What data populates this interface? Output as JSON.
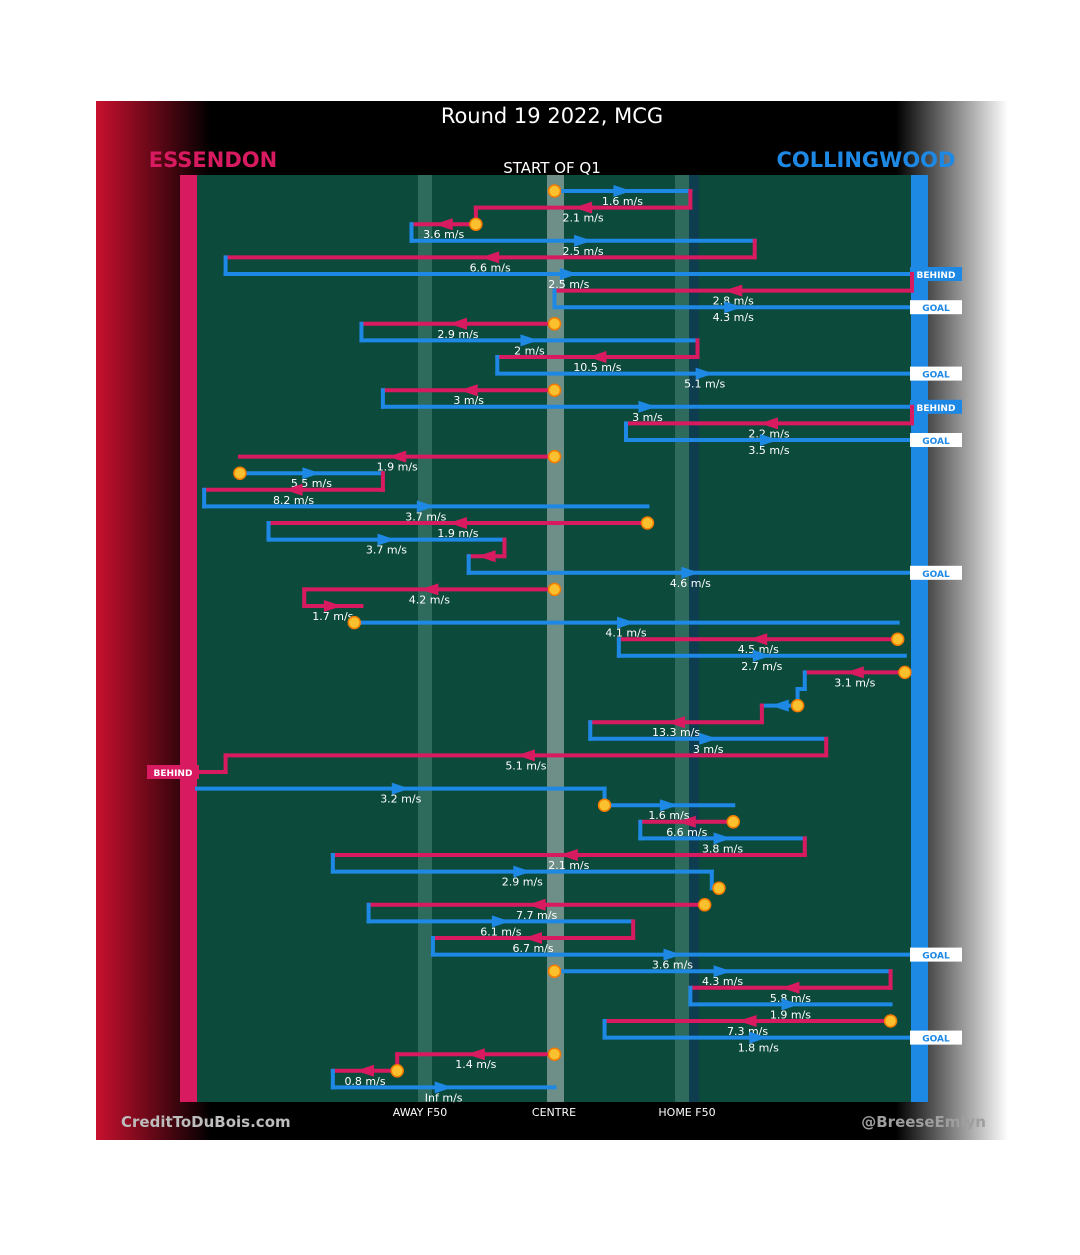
{
  "chart_data": {
    "type": "line",
    "title": "Round 19 2022, MCG",
    "subtitle": "START OF Q1",
    "team_left": "ESSENDON",
    "team_right": "COLLINGWOOD",
    "x_axis": {
      "ticks": [
        {
          "label": "AWAY F50",
          "x": 0.3
        },
        {
          "label": "CENTRE",
          "x": 0.5
        },
        {
          "label": "HOME F50",
          "x": 0.7
        }
      ],
      "xlim": [
        0,
        1
      ]
    },
    "credit_left": "CreditToDuBois.com",
    "credit_right": "@BreeseEmlyn",
    "colors": {
      "essendon": "#d81b60",
      "collingwood": "#1e88e5",
      "ground": "#0c4a3c",
      "marker": "#fbc02d"
    },
    "segments": [
      {
        "team": "C",
        "x0": 0.5,
        "x1": 0.69,
        "y": 1,
        "speed": "1.6 m/s",
        "joinFrom": 0
      },
      {
        "team": "E",
        "x0": 0.69,
        "x1": 0.39,
        "y": 2,
        "speed": "2.1 m/s",
        "joinFrom": 1
      },
      {
        "team": "E",
        "x0": 0.39,
        "x1": 0.3,
        "y": 3,
        "speed": "3.6 m/s",
        "joinFrom": 2
      },
      {
        "team": "C",
        "x0": 0.3,
        "x1": 0.78,
        "y": 4,
        "speed": "2.5 m/s",
        "joinFrom": 3
      },
      {
        "team": "E",
        "x0": 0.78,
        "x1": 0.04,
        "y": 5,
        "speed": "6.6 m/s",
        "joinFrom": 4
      },
      {
        "team": "C",
        "x0": 0.04,
        "x1": 1.0,
        "y": 6,
        "speed": "2.5 m/s",
        "joinFrom": 5,
        "end": "BEHIND"
      },
      {
        "team": "E",
        "x0": 1.0,
        "x1": 0.5,
        "y": 7,
        "speed": "2.8 m/s",
        "joinFrom": 6
      },
      {
        "team": "C",
        "x0": 0.5,
        "x1": 1.0,
        "y": 8,
        "speed": "4.3 m/s",
        "joinFrom": 7,
        "end": "GOAL"
      },
      {
        "team": "E",
        "x0": 0.5,
        "x1": 0.23,
        "y": 9,
        "speed": "2.9 m/s",
        "joinFrom": null
      },
      {
        "team": "C",
        "x0": 0.23,
        "x1": 0.7,
        "y": 10,
        "speed": "2 m/s",
        "joinFrom": 9
      },
      {
        "team": "E",
        "x0": 0.7,
        "x1": 0.42,
        "y": 11,
        "speed": "10.5 m/s",
        "joinFrom": 10
      },
      {
        "team": "C",
        "x0": 0.42,
        "x1": 1.0,
        "y": 12,
        "speed": "5.1 m/s",
        "joinFrom": 11,
        "end": "GOAL"
      },
      {
        "team": "E",
        "x0": 0.5,
        "x1": 0.26,
        "y": 13,
        "speed": "3 m/s",
        "joinFrom": null
      },
      {
        "team": "C",
        "x0": 0.26,
        "x1": 1.0,
        "y": 14,
        "speed": "3 m/s",
        "joinFrom": 13,
        "end": "BEHIND"
      },
      {
        "team": "E",
        "x0": 1.0,
        "x1": 0.6,
        "y": 15,
        "speed": "2.2 m/s",
        "joinFrom": 14
      },
      {
        "team": "C",
        "x0": 0.6,
        "x1": 1.0,
        "y": 16,
        "speed": "3.5 m/s",
        "joinFrom": 15,
        "end": "GOAL"
      },
      {
        "team": "E",
        "x0": 0.5,
        "x1": 0.06,
        "y": 17,
        "speed": "1.9 m/s",
        "joinFrom": null
      },
      {
        "team": "C",
        "x0": 0.06,
        "x1": 0.26,
        "y": 18,
        "speed": "5.5 m/s",
        "joinFrom": null
      },
      {
        "team": "E",
        "x0": 0.26,
        "x1": 0.01,
        "y": 19,
        "speed": "8.2 m/s",
        "joinFrom": 18
      },
      {
        "team": "C",
        "x0": 0.01,
        "x1": 0.63,
        "y": 20,
        "speed": "3.7 m/s",
        "joinFrom": 19
      },
      {
        "team": "E",
        "x0": 0.63,
        "x1": 0.1,
        "y": 21,
        "speed": "1.9 m/s",
        "joinFrom": null
      },
      {
        "team": "C",
        "x0": 0.1,
        "x1": 0.43,
        "y": 22,
        "speed": "3.7 m/s",
        "joinFrom": 21
      },
      {
        "team": "E",
        "x0": 0.43,
        "x1": 0.38,
        "y": 23,
        "speed": "",
        "joinFrom": 22
      },
      {
        "team": "C",
        "x0": 0.38,
        "x1": 1.0,
        "y": 24,
        "speed": "4.6 m/s",
        "joinFrom": 23,
        "end": "GOAL"
      },
      {
        "team": "E",
        "x0": 0.5,
        "x1": 0.15,
        "y": 25,
        "speed": "4.2 m/s",
        "joinFrom": null
      },
      {
        "team": "E",
        "x0": 0.15,
        "x1": 0.23,
        "y": 26,
        "speed": "1.7 m/s",
        "joinFrom": 25
      },
      {
        "team": "C",
        "x0": 0.22,
        "x1": 0.98,
        "y": 27,
        "speed": "4.1 m/s",
        "joinFrom": null
      },
      {
        "team": "E",
        "x0": 0.98,
        "x1": 0.59,
        "y": 28,
        "speed": "4.5 m/s",
        "joinFrom": null
      },
      {
        "team": "C",
        "x0": 0.59,
        "x1": 0.99,
        "y": 29,
        "speed": "2.7 m/s",
        "joinFrom": 28
      },
      {
        "team": "E",
        "x0": 0.99,
        "x1": 0.85,
        "y": 30,
        "speed": "3.1 m/s",
        "joinFrom": null
      },
      {
        "team": "C",
        "x0": 0.85,
        "x1": 0.84,
        "y": 31,
        "speed": "",
        "joinFrom": 30
      },
      {
        "team": "C",
        "x0": 0.84,
        "x1": 0.79,
        "y": 32,
        "speed": "",
        "joinFrom": 31
      },
      {
        "team": "E",
        "x0": 0.79,
        "x1": 0.55,
        "y": 33,
        "speed": "13.3 m/s",
        "joinFrom": 32
      },
      {
        "team": "C",
        "x0": 0.55,
        "x1": 0.88,
        "y": 34,
        "speed": "3 m/s",
        "joinFrom": 33
      },
      {
        "team": "E",
        "x0": 0.88,
        "x1": 0.04,
        "y": 35,
        "speed": "5.1 m/s",
        "joinFrom": 34
      },
      {
        "team": "E",
        "x0": 0.04,
        "x1": 0.0,
        "y": 36,
        "speed": "",
        "joinFrom": 35,
        "end": "BEHIND"
      },
      {
        "team": "C",
        "x0": 0.0,
        "x1": 0.57,
        "y": 37,
        "speed": "3.2 m/s",
        "joinFrom": null
      },
      {
        "team": "C",
        "x0": 0.57,
        "x1": 0.75,
        "y": 38,
        "speed": "1.6 m/s",
        "joinFrom": 37
      },
      {
        "team": "E",
        "x0": 0.75,
        "x1": 0.62,
        "y": 39,
        "speed": "6.6 m/s",
        "joinFrom": null
      },
      {
        "team": "C",
        "x0": 0.62,
        "x1": 0.85,
        "y": 40,
        "speed": "3.8 m/s",
        "joinFrom": 39
      },
      {
        "team": "E",
        "x0": 0.85,
        "x1": 0.19,
        "y": 41,
        "speed": "2.1 m/s",
        "joinFrom": 40
      },
      {
        "team": "C",
        "x0": 0.19,
        "x1": 0.72,
        "y": 42,
        "speed": "2.9 m/s",
        "joinFrom": 41
      },
      {
        "team": "C",
        "x0": 0.72,
        "x1": 0.73,
        "y": 43,
        "speed": "",
        "joinFrom": 42
      },
      {
        "team": "E",
        "x0": 0.71,
        "x1": 0.24,
        "y": 44,
        "speed": "7.7 m/s",
        "joinFrom": null
      },
      {
        "team": "C",
        "x0": 0.24,
        "x1": 0.61,
        "y": 45,
        "speed": "6.1 m/s",
        "joinFrom": 44
      },
      {
        "team": "E",
        "x0": 0.61,
        "x1": 0.33,
        "y": 46,
        "speed": "6.7 m/s",
        "joinFrom": 45
      },
      {
        "team": "C",
        "x0": 0.33,
        "x1": 1.0,
        "y": 47,
        "speed": "3.6 m/s",
        "joinFrom": 46,
        "end": "GOAL"
      },
      {
        "team": "C",
        "x0": 0.5,
        "x1": 0.97,
        "y": 48,
        "speed": "4.3 m/s",
        "joinFrom": null
      },
      {
        "team": "E",
        "x0": 0.97,
        "x1": 0.69,
        "y": 49,
        "speed": "5.8 m/s",
        "joinFrom": 48
      },
      {
        "team": "C",
        "x0": 0.69,
        "x1": 0.97,
        "y": 50,
        "speed": "1.9 m/s",
        "joinFrom": 49
      },
      {
        "team": "E",
        "x0": 0.97,
        "x1": 0.57,
        "y": 51,
        "speed": "7.3 m/s",
        "joinFrom": null
      },
      {
        "team": "C",
        "x0": 0.57,
        "x1": 1.0,
        "y": 52,
        "speed": "1.8 m/s",
        "joinFrom": 51,
        "end": "GOAL"
      },
      {
        "team": "E",
        "x0": 0.5,
        "x1": 0.28,
        "y": 53,
        "speed": "1.4 m/s",
        "joinFrom": null
      },
      {
        "team": "E",
        "x0": 0.28,
        "x1": 0.19,
        "y": 54,
        "speed": "0.8 m/s",
        "joinFrom": 53
      },
      {
        "team": "C",
        "x0": 0.19,
        "x1": 0.5,
        "y": 55,
        "speed": "Inf m/s",
        "joinFrom": 54
      }
    ],
    "markers": [
      {
        "x": 0.5,
        "y": 1
      },
      {
        "x": 0.39,
        "y": 3
      },
      {
        "x": 0.5,
        "y": 9
      },
      {
        "x": 0.5,
        "y": 13
      },
      {
        "x": 0.5,
        "y": 17
      },
      {
        "x": 0.06,
        "y": 18
      },
      {
        "x": 0.63,
        "y": 21
      },
      {
        "x": 0.5,
        "y": 25
      },
      {
        "x": 0.22,
        "y": 27
      },
      {
        "x": 0.98,
        "y": 28
      },
      {
        "x": 0.99,
        "y": 30
      },
      {
        "x": 0.84,
        "y": 32
      },
      {
        "x": 0.57,
        "y": 38
      },
      {
        "x": 0.75,
        "y": 39
      },
      {
        "x": 0.73,
        "y": 43
      },
      {
        "x": 0.71,
        "y": 44
      },
      {
        "x": 0.5,
        "y": 48
      },
      {
        "x": 0.97,
        "y": 51
      },
      {
        "x": 0.5,
        "y": 53
      },
      {
        "x": 0.28,
        "y": 54
      }
    ]
  }
}
